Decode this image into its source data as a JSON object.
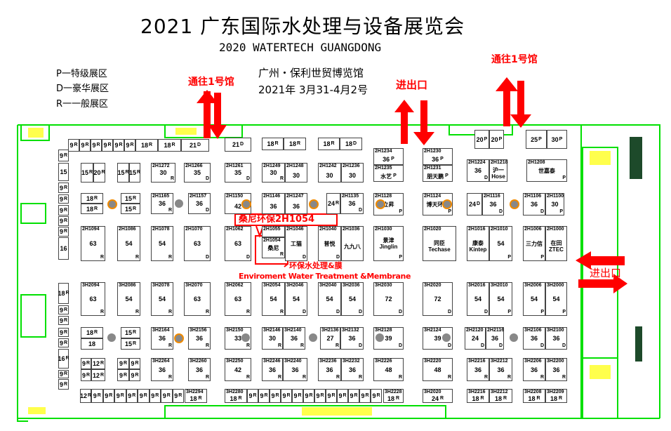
{
  "header": {
    "title": "2021 广东国际水处理与设备展览会",
    "subtitle": "2020 WATERTECH GUANGDONG",
    "legend": [
      "P一特级展区",
      "D一豪华展区",
      "R一一般展区"
    ],
    "venue": "广州・保利世贸博览馆",
    "dates": "2021年 3月31-4月2号"
  },
  "signs": {
    "to_hall1_left": "通往1号馆",
    "to_hall1_right": "通往1号馆",
    "entrance_top": "进出口",
    "entrance_right": "进出口"
  },
  "callout": {
    "label": "桑尼环保2H1054",
    "zone_cn": "环保水处理&膜",
    "zone_en": "Enviroment Water Treatment &Membrane"
  },
  "colors": {
    "wall": "#00e000",
    "arrow": "#ff0000",
    "booth_border": "#555555",
    "pillar": "#888888",
    "pillar_ring": "#f08a00"
  },
  "booths": [
    {
      "id": "",
      "area": "9",
      "grade": "R"
    },
    {
      "id": "",
      "area": "9",
      "grade": "R"
    },
    {
      "id": "",
      "area": "9",
      "grade": "R"
    },
    {
      "id": "",
      "area": "9",
      "grade": "R"
    },
    {
      "id": "",
      "area": "9",
      "grade": "R"
    },
    {
      "id": "",
      "area": "9",
      "grade": "R"
    },
    {
      "id": "",
      "area": "18",
      "grade": "R"
    },
    {
      "id": "",
      "area": "18",
      "grade": "R"
    },
    {
      "id": "",
      "area": "21",
      "grade": "D"
    },
    {
      "id": "",
      "area": "21",
      "grade": "D"
    },
    {
      "id": "",
      "area": "18",
      "grade": "R"
    },
    {
      "id": "",
      "area": "18",
      "grade": "R"
    },
    {
      "id": "",
      "area": "18",
      "grade": "R"
    },
    {
      "id": "",
      "area": "18",
      "grade": "D"
    },
    {
      "id": "",
      "area": "20",
      "grade": "P"
    },
    {
      "id": "",
      "area": "20",
      "grade": "P"
    },
    {
      "id": "",
      "area": "25",
      "grade": "P"
    },
    {
      "id": "",
      "area": "30",
      "grade": "P"
    },
    {
      "id": "",
      "area": "15",
      "grade": "R"
    },
    {
      "id": "",
      "area": "20",
      "grade": "R"
    },
    {
      "id": "",
      "area": "15",
      "grade": "R"
    },
    {
      "id": "",
      "area": "15",
      "grade": "R"
    },
    {
      "id": "2H1272",
      "area": "30",
      "grade": "R"
    },
    {
      "id": "2H1266",
      "area": "35",
      "grade": "D"
    },
    {
      "id": "2H1261",
      "area": "35",
      "grade": "D"
    },
    {
      "id": "2H1249",
      "area": "30",
      "grade": "R"
    },
    {
      "id": "2H1248",
      "area": "30",
      "grade": ""
    },
    {
      "id": "2H1242",
      "area": "30",
      "grade": ""
    },
    {
      "id": "2H1236",
      "area": "30",
      "grade": ""
    },
    {
      "id": "2H1234",
      "area": "36",
      "grade": "P"
    },
    {
      "id": "2H1235",
      "name": "水艺",
      "grade": "P"
    },
    {
      "id": "2H1230",
      "area": "36",
      "grade": "P"
    },
    {
      "id": "2H1231",
      "name": "朋天鹏",
      "grade": "P"
    },
    {
      "id": "2H1224",
      "area": "36",
      "grade": "D"
    },
    {
      "id": "2H1218",
      "name": "沪一 Hose",
      "grade": ""
    },
    {
      "id": "2H1208",
      "name": "世嘉泰",
      "grade": "P"
    },
    {
      "id": "",
      "area": "18",
      "grade": "R"
    },
    {
      "id": "",
      "area": "18",
      "grade": "R"
    },
    {
      "id": "",
      "area": "15",
      "grade": "R"
    },
    {
      "id": "",
      "area": "15",
      "grade": "R"
    },
    {
      "id": "2H1165",
      "area": "36",
      "grade": "R"
    },
    {
      "id": "2H1157",
      "area": "36",
      "grade": "D"
    },
    {
      "id": "2H1150",
      "area": "42",
      "grade": ""
    },
    {
      "id": "2H1146",
      "area": "36",
      "grade": ""
    },
    {
      "id": "2H1247",
      "area": "36",
      "grade": ""
    },
    {
      "id": "",
      "area": "24",
      "grade": "R"
    },
    {
      "id": "2H1135",
      "area": "36",
      "grade": "D"
    },
    {
      "id": "2H1128",
      "name": "立昇",
      "grade": "P"
    },
    {
      "id": "2H1124",
      "name": "博天环境",
      "grade": "P"
    },
    {
      "id": "",
      "area": "24",
      "grade": "D"
    },
    {
      "id": "2H1116",
      "area": "36",
      "grade": "D"
    },
    {
      "id": "2H1106",
      "area": "36",
      "grade": "D"
    },
    {
      "id": "2H1100",
      "area": "30",
      "grade": "P"
    },
    {
      "id": "2H1094",
      "area": "63",
      "grade": "R"
    },
    {
      "id": "2H1086",
      "area": "54",
      "grade": "R"
    },
    {
      "id": "2H1078",
      "area": "54",
      "grade": "R"
    },
    {
      "id": "2H1070",
      "area": "63",
      "grade": "D"
    },
    {
      "id": "2H1062",
      "area": "63",
      "grade": "D"
    },
    {
      "id": "2H1055",
      "area": "",
      "grade": ""
    },
    {
      "id": "2H1054",
      "name": "桑尼",
      "grade": "R"
    },
    {
      "id": "2H1046",
      "name": "工猫",
      "grade": "D"
    },
    {
      "id": "2H1040",
      "name": "普悦",
      "grade": "D"
    },
    {
      "id": "2H1036",
      "name": "九九八",
      "grade": ""
    },
    {
      "id": "2H1030",
      "name": "景津 Jinglin",
      "grade": "P"
    },
    {
      "id": "2H1020",
      "name": "同臣 Techase",
      "grade": ""
    },
    {
      "id": "2H1016",
      "name": "康泰 Kintep",
      "grade": ""
    },
    {
      "id": "2H1010",
      "area": "54",
      "grade": "P"
    },
    {
      "id": "2H1006",
      "name": "三力信",
      "grade": "P"
    },
    {
      "id": "2H1000",
      "name": "在田 ZTEC",
      "grade": ""
    },
    {
      "id": "3H2094",
      "area": "63",
      "grade": "R"
    },
    {
      "id": "3H2086",
      "area": "54",
      "grade": "R"
    },
    {
      "id": "3H2078",
      "area": "54",
      "grade": "R"
    },
    {
      "id": "3H2070",
      "area": "63",
      "grade": "R"
    },
    {
      "id": "3H2062",
      "area": "63",
      "grade": "R"
    },
    {
      "id": "3H2054",
      "area": "54",
      "grade": "R"
    },
    {
      "id": "3H2046",
      "area": "54",
      "grade": "D"
    },
    {
      "id": "3H2040",
      "area": "54",
      "grade": "D"
    },
    {
      "id": "3H2036",
      "area": "54",
      "grade": "D"
    },
    {
      "id": "3H2030",
      "area": "72",
      "grade": "D"
    },
    {
      "id": "3H2020",
      "area": "72",
      "grade": "D"
    },
    {
      "id": "3H2016",
      "area": "54",
      "grade": "D"
    },
    {
      "id": "3H2010",
      "area": "54",
      "grade": "P"
    },
    {
      "id": "3H2006",
      "area": "54",
      "grade": "P"
    },
    {
      "id": "3H2000",
      "area": "54",
      "grade": "P"
    },
    {
      "id": "",
      "area": "18",
      "grade": "R"
    },
    {
      "id": "",
      "area": "18",
      "grade": ""
    },
    {
      "id": "",
      "area": "15",
      "grade": "R"
    },
    {
      "id": "",
      "area": "15",
      "grade": "R"
    },
    {
      "id": "3H2164",
      "area": "36",
      "grade": "R"
    },
    {
      "id": "3H2156",
      "area": "36",
      "grade": "R"
    },
    {
      "id": "3H2150",
      "area": "33",
      "grade": "R"
    },
    {
      "id": "3H2146",
      "area": "30",
      "grade": "R"
    },
    {
      "id": "3H2140",
      "area": "36",
      "grade": "R"
    },
    {
      "id": "3H2136",
      "area": "27",
      "grade": "R"
    },
    {
      "id": "3H2132",
      "area": "36",
      "grade": "D"
    },
    {
      "id": "3H2128",
      "area": "39",
      "grade": "D"
    },
    {
      "id": "3H2124",
      "area": "39",
      "grade": "D"
    },
    {
      "id": "2H2120",
      "area": "24",
      "grade": "D"
    },
    {
      "id": "2H2116",
      "area": "36",
      "grade": "D"
    },
    {
      "id": "3H2106",
      "area": "36",
      "grade": "D"
    },
    {
      "id": "3H2100",
      "area": "36",
      "grade": "D"
    },
    {
      "id": "",
      "area": "9",
      "grade": "R"
    },
    {
      "id": "",
      "area": "12",
      "grade": "R"
    },
    {
      "id": "",
      "area": "9",
      "grade": "R"
    },
    {
      "id": "",
      "area": "12",
      "grade": "R"
    },
    {
      "id": "",
      "area": "9",
      "grade": "R"
    },
    {
      "id": "",
      "area": "9",
      "grade": "R"
    },
    {
      "id": "",
      "area": "9",
      "grade": "R"
    },
    {
      "id": "",
      "area": "9",
      "grade": "R"
    },
    {
      "id": "3H2264",
      "area": "36",
      "grade": "R"
    },
    {
      "id": "3H2260",
      "area": "36",
      "grade": "R"
    },
    {
      "id": "3H2250",
      "area": "42",
      "grade": "R"
    },
    {
      "id": "3H2246",
      "area": "36",
      "grade": "R"
    },
    {
      "id": "3H2240",
      "area": "36",
      "grade": "R"
    },
    {
      "id": "3H2236",
      "area": "36",
      "grade": "R"
    },
    {
      "id": "3H2232",
      "area": "36",
      "grade": "R"
    },
    {
      "id": "3H2226",
      "area": "48",
      "grade": "R"
    },
    {
      "id": "3H2220",
      "area": "48",
      "grade": "R"
    },
    {
      "id": "3H2216",
      "area": "36",
      "grade": "R"
    },
    {
      "id": "3H2212",
      "area": "36",
      "grade": "R"
    },
    {
      "id": "3H2206",
      "area": "36",
      "grade": "R"
    },
    {
      "id": "3H2200",
      "area": "36",
      "grade": "R"
    },
    {
      "id": "",
      "area": "12",
      "grade": "R"
    },
    {
      "id": "",
      "area": "9",
      "grade": "R"
    },
    {
      "id": "",
      "area": "9",
      "grade": "R"
    },
    {
      "id": "",
      "area": "9",
      "grade": "R"
    },
    {
      "id": "",
      "area": "9",
      "grade": "R"
    },
    {
      "id": "",
      "area": "9",
      "grade": "R"
    },
    {
      "id": "",
      "area": "9",
      "grade": "R"
    },
    {
      "id": "",
      "area": "9",
      "grade": "R"
    },
    {
      "id": "",
      "area": "9",
      "grade": "R"
    },
    {
      "id": "3H2294",
      "area": "18",
      "grade": "R"
    },
    {
      "id": "3H2280",
      "area": "18",
      "grade": "R"
    },
    {
      "id": "",
      "area": "9",
      "grade": "R"
    },
    {
      "id": "",
      "area": "9",
      "grade": "R"
    },
    {
      "id": "",
      "area": "9",
      "grade": "R"
    },
    {
      "id": "",
      "area": "9",
      "grade": "R"
    },
    {
      "id": "",
      "area": "9",
      "grade": "R"
    },
    {
      "id": "",
      "area": "9",
      "grade": "R"
    },
    {
      "id": "",
      "area": "9",
      "grade": "R"
    },
    {
      "id": "",
      "area": "9",
      "grade": "R"
    },
    {
      "id": "",
      "area": "9",
      "grade": "R"
    },
    {
      "id": "",
      "area": "9",
      "grade": "R"
    },
    {
      "id": "",
      "area": "9",
      "grade": "R"
    },
    {
      "id": "",
      "area": "9",
      "grade": "R"
    },
    {
      "id": "3H2228",
      "area": "18",
      "grade": "R"
    },
    {
      "id": "3H2020",
      "area": "24",
      "grade": "R"
    },
    {
      "id": "3H2216",
      "area": "18",
      "grade": "R"
    },
    {
      "id": "3H2212",
      "area": "18",
      "grade": "R"
    },
    {
      "id": "3H2208",
      "area": "18",
      "grade": "R"
    },
    {
      "id": "3H2209",
      "area": "18",
      "grade": "R"
    },
    {
      "id": "",
      "area": "9",
      "grade": "R"
    },
    {
      "id": "",
      "area": "15",
      "grade": ""
    },
    {
      "id": "",
      "area": "9",
      "grade": "R"
    },
    {
      "id": "",
      "area": "9",
      "grade": "R"
    },
    {
      "id": "",
      "area": "9",
      "grade": "R"
    },
    {
      "id": "",
      "area": "9",
      "grade": "R"
    },
    {
      "id": "",
      "area": "9",
      "grade": "R"
    },
    {
      "id": "",
      "area": "16",
      "grade": ""
    },
    {
      "id": "",
      "area": "18",
      "grade": "R"
    },
    {
      "id": "",
      "area": "9",
      "grade": "R"
    },
    {
      "id": "",
      "area": "9",
      "grade": "R"
    },
    {
      "id": "",
      "area": "9",
      "grade": "R"
    },
    {
      "id": "",
      "area": "9",
      "grade": "R"
    },
    {
      "id": "",
      "area": "16",
      "grade": "R"
    },
    {
      "id": "",
      "area": "9",
      "grade": "R"
    },
    {
      "id": "",
      "area": "9",
      "grade": "R"
    }
  ]
}
